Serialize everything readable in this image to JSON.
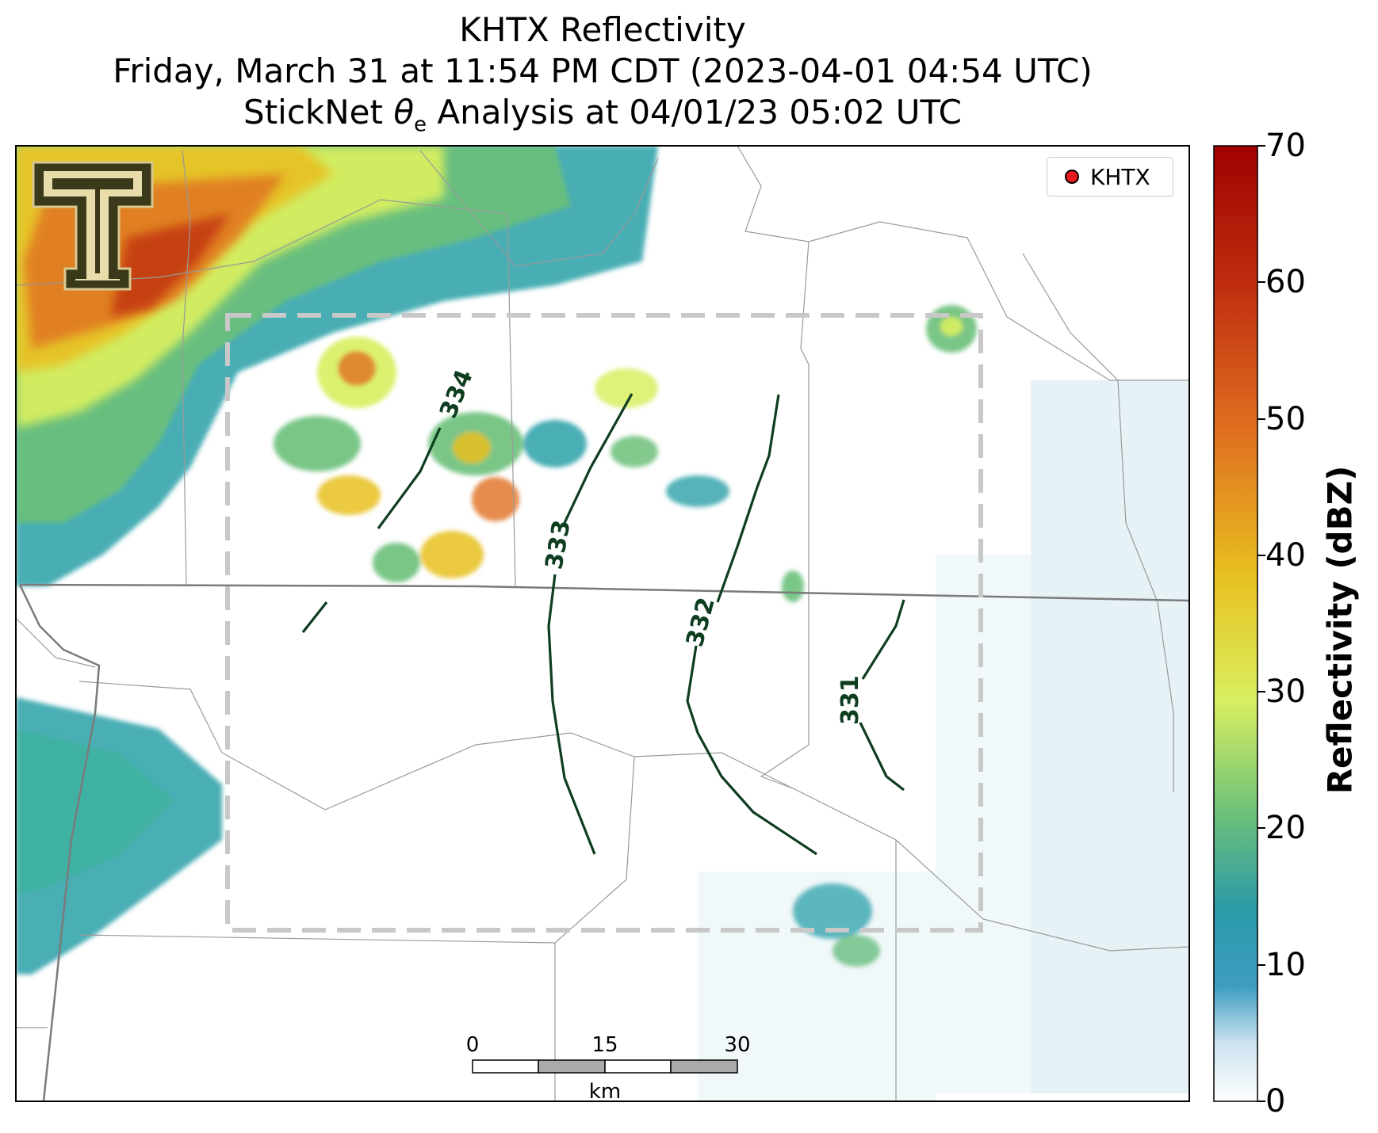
{
  "title": {
    "line1": "KHTX Reflectivity",
    "line2": "Friday, March 31 at 11:54 PM CDT (2023-04-01 04:54 UTC)",
    "line3_prefix": "StickNet ",
    "line3_theta": "θ",
    "line3_sub": "e",
    "line3_suffix": " Analysis at 04/01/23 05:02 UTC"
  },
  "legend": {
    "label": "KHTX",
    "marker_color": "#e8191f"
  },
  "colorbar": {
    "label": "Reflectivity (dBZ)",
    "min": 0,
    "max": 70,
    "ticks": [
      "0",
      "10",
      "20",
      "30",
      "40",
      "50",
      "60",
      "70"
    ],
    "colors": [
      "#ffffff",
      "#4a9fc4",
      "#2a9aa8",
      "#6cc07a",
      "#d8ef60",
      "#e8c020",
      "#e07020",
      "#c03010",
      "#a00000"
    ]
  },
  "contours": {
    "color": "#0e3d20",
    "units": "θe (K)",
    "labels": [
      "334",
      "333",
      "332",
      "331"
    ]
  },
  "scale_bar": {
    "ticks": [
      "0",
      "15",
      "30"
    ],
    "unit": "km"
  },
  "logo": {
    "name": "Texas Tech Double T"
  }
}
